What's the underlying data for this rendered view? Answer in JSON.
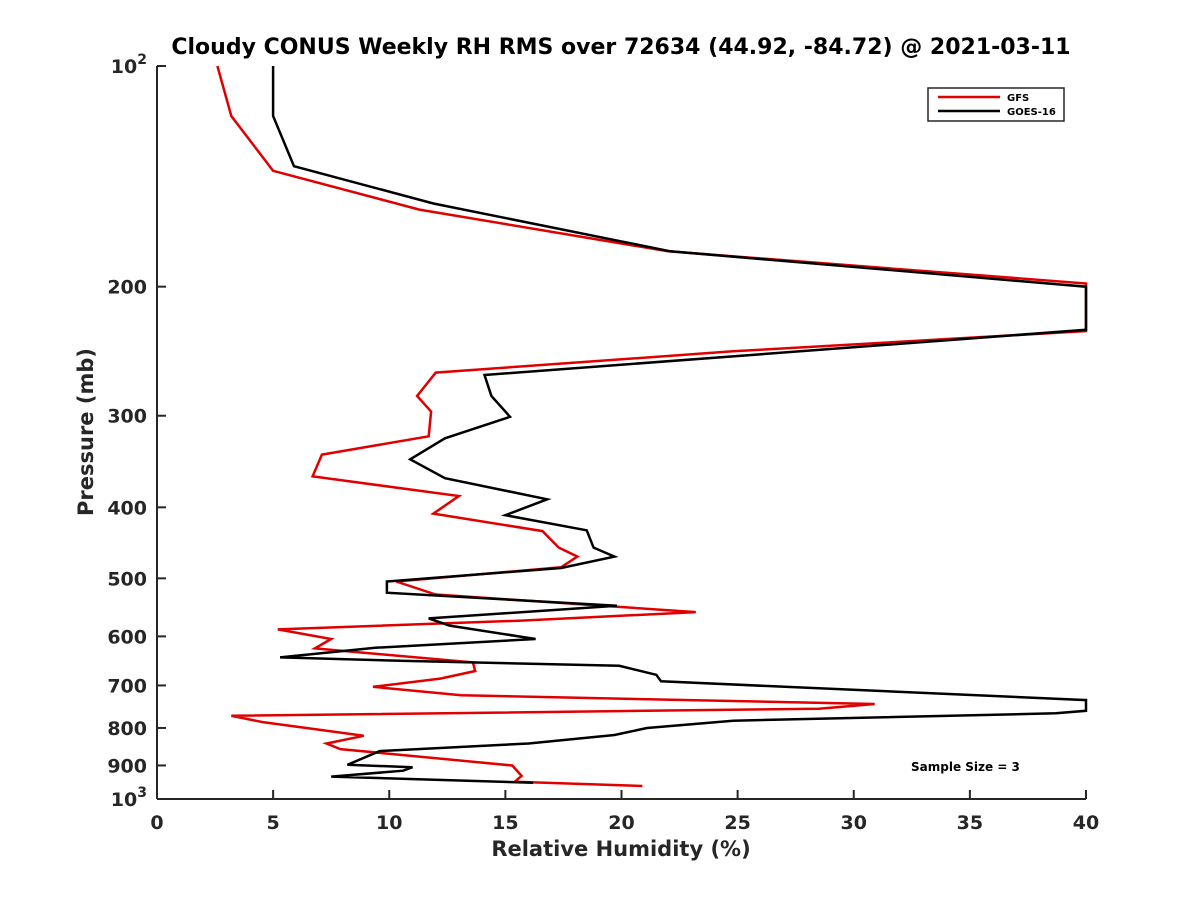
{
  "chart_data": {
    "type": "line",
    "title": "Cloudy CONUS Weekly RH RMS over 72634 (44.92, -84.72) @ 2021-03-11",
    "xlabel": "Relative Humidity (%)",
    "ylabel": "Pressure (mb)",
    "xlim": [
      0,
      40
    ],
    "ylim": [
      100,
      1000
    ],
    "y_scale": "log",
    "y_reversed": true,
    "grid": false,
    "legend_position": "top-right",
    "x_ticks": [
      0,
      5,
      10,
      15,
      20,
      25,
      30,
      35,
      40
    ],
    "x_tick_labels": [
      "0",
      "5",
      "10",
      "15",
      "20",
      "25",
      "30",
      "35",
      "40"
    ],
    "y_ticks": [
      100,
      200,
      300,
      400,
      500,
      600,
      700,
      800,
      900,
      1000
    ],
    "y_tick_labels": [
      {
        "base": "10",
        "exp": "2"
      },
      {
        "base": "200",
        "exp": ""
      },
      {
        "base": "300",
        "exp": ""
      },
      {
        "base": "400",
        "exp": ""
      },
      {
        "base": "500",
        "exp": ""
      },
      {
        "base": "600",
        "exp": ""
      },
      {
        "base": "700",
        "exp": ""
      },
      {
        "base": "800",
        "exp": ""
      },
      {
        "base": "900",
        "exp": ""
      },
      {
        "base": "10",
        "exp": "3"
      }
    ],
    "annotation": "Sample Size = 3",
    "series": [
      {
        "name": "GFS",
        "color": "#e00000",
        "points": [
          [
            2.6,
            100
          ],
          [
            3.2,
            117
          ],
          [
            5.0,
            139
          ],
          [
            11.3,
            157
          ],
          [
            22.0,
            179
          ],
          [
            40.0,
            198
          ],
          [
            40.0,
            230
          ],
          [
            24.8,
            245
          ],
          [
            12.0,
            262
          ],
          [
            11.2,
            282
          ],
          [
            11.8,
            296
          ],
          [
            11.7,
            320
          ],
          [
            7.1,
            339
          ],
          [
            6.7,
            363
          ],
          [
            13.0,
            386
          ],
          [
            11.9,
            408
          ],
          [
            16.6,
            431
          ],
          [
            17.3,
            454
          ],
          [
            18.1,
            467
          ],
          [
            17.4,
            483
          ],
          [
            10.3,
            505
          ],
          [
            12.0,
            526
          ],
          [
            23.2,
            556
          ],
          [
            15.7,
            571
          ],
          [
            5.2,
            587
          ],
          [
            7.5,
            605
          ],
          [
            6.8,
            623
          ],
          [
            13.6,
            651
          ],
          [
            13.7,
            669
          ],
          [
            12.2,
            685
          ],
          [
            9.3,
            703
          ],
          [
            13.1,
            722
          ],
          [
            30.9,
            742
          ],
          [
            28.5,
            753
          ],
          [
            3.2,
            770
          ],
          [
            4.6,
            786
          ],
          [
            8.9,
            820
          ],
          [
            7.3,
            840
          ],
          [
            7.9,
            855
          ],
          [
            15.3,
            900
          ],
          [
            15.7,
            930
          ],
          [
            15.4,
            947
          ],
          [
            20.9,
            960
          ]
        ]
      },
      {
        "name": "GOES-16",
        "color": "#000000",
        "points": [
          [
            5.0,
            100
          ],
          [
            5.0,
            117
          ],
          [
            5.9,
            137
          ],
          [
            11.9,
            154
          ],
          [
            22.1,
            179
          ],
          [
            40.0,
            200
          ],
          [
            40.0,
            229
          ],
          [
            14.1,
            264
          ],
          [
            14.4,
            282
          ],
          [
            15.2,
            301
          ],
          [
            12.4,
            322
          ],
          [
            10.9,
            344
          ],
          [
            12.4,
            365
          ],
          [
            16.8,
            390
          ],
          [
            15.0,
            410
          ],
          [
            18.5,
            430
          ],
          [
            18.8,
            454
          ],
          [
            19.7,
            467
          ],
          [
            17.4,
            484
          ],
          [
            9.9,
            505
          ],
          [
            9.9,
            523
          ],
          [
            19.8,
            545
          ],
          [
            11.7,
            567
          ],
          [
            12.6,
            580
          ],
          [
            16.3,
            605
          ],
          [
            9.4,
            622
          ],
          [
            5.3,
            641
          ],
          [
            10.7,
            648
          ],
          [
            19.9,
            658
          ],
          [
            21.5,
            677
          ],
          [
            21.7,
            691
          ],
          [
            40.0,
            733
          ],
          [
            40.0,
            758
          ],
          [
            38.7,
            764
          ],
          [
            24.8,
            782
          ],
          [
            21.1,
            800
          ],
          [
            19.7,
            818
          ],
          [
            16.0,
            840
          ],
          [
            9.6,
            860
          ],
          [
            8.2,
            898
          ],
          [
            11.0,
            905
          ],
          [
            10.6,
            915
          ],
          [
            7.5,
            932
          ],
          [
            16.2,
            950
          ]
        ]
      }
    ]
  }
}
